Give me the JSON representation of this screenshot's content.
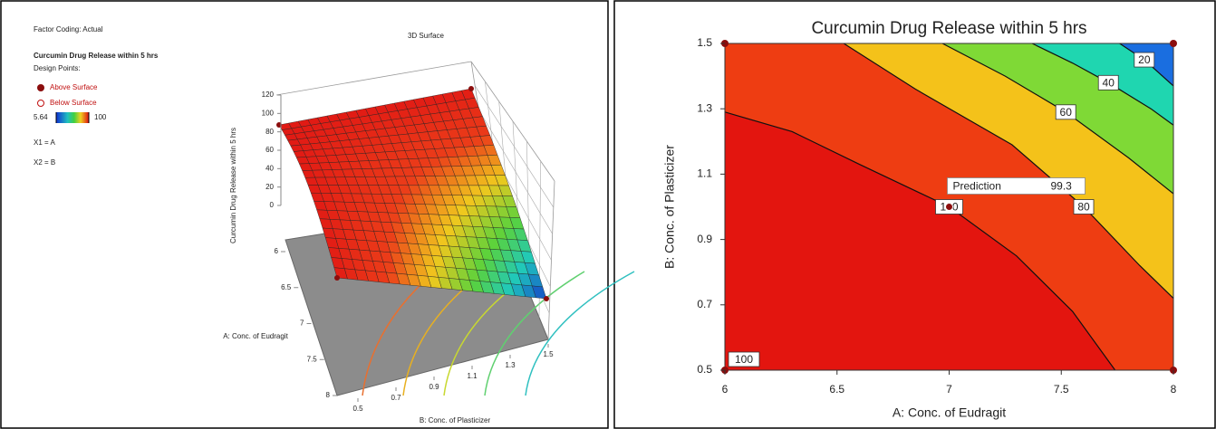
{
  "chart_data": [
    {
      "type": "surface",
      "title": "3D Surface",
      "factor_coding": "Factor Coding: Actual",
      "response": "Curcumin Drug Release within 5 hrs",
      "design_points_title": "Design Points:",
      "legend": [
        "Above Surface",
        "Below Surface"
      ],
      "colorbar_range": [
        5.64,
        100
      ],
      "factors": [
        "X1 = A",
        "X2 = B"
      ],
      "zlabel": "Curcumin Drug Release within 5 hrs",
      "zlim": [
        0,
        120
      ],
      "zticks": [
        0,
        20,
        40,
        60,
        80,
        100,
        120
      ],
      "xlabel": "A: Conc. of Eudragit",
      "xlim": [
        6,
        8
      ],
      "xticks": [
        6,
        6.5,
        7,
        7.5,
        8
      ],
      "ylabel": "B: Conc. of Plasticizer",
      "ylim": [
        0.5,
        1.5
      ],
      "yticks": [
        0.5,
        0.7,
        0.9,
        1.1,
        1.3,
        1.5
      ]
    },
    {
      "type": "contour",
      "title": "Curcumin Drug Release within 5 hrs",
      "xlabel": "A: Conc. of Eudragit",
      "ylabel": "B: Conc. of Plasticizer",
      "xlim": [
        6,
        8
      ],
      "xticks": [
        6,
        6.5,
        7,
        7.5,
        8
      ],
      "ylim": [
        0.5,
        1.5
      ],
      "yticks": [
        0.5,
        0.7,
        0.9,
        1.1,
        1.3,
        1.5
      ],
      "fill_color": "#e3150f",
      "contours": [
        {
          "level": 100,
          "color": "#ee3d12",
          "x": [
            6,
            6.3,
            6.6,
            7.0,
            7.3,
            7.55,
            7.74
          ],
          "y": [
            1.29,
            1.23,
            1.13,
            1.0,
            0.85,
            0.68,
            0.5
          ]
        },
        {
          "level": 80,
          "color": "#f4c21a",
          "x": [
            6.53,
            6.85,
            7.28,
            7.6,
            7.85,
            8
          ],
          "y": [
            1.5,
            1.36,
            1.19,
            1.0,
            0.82,
            0.72
          ]
        },
        {
          "level": 60,
          "color": "#7fd936",
          "x": [
            6.97,
            7.25,
            7.52,
            7.8,
            8
          ],
          "y": [
            1.5,
            1.4,
            1.29,
            1.15,
            1.04
          ]
        },
        {
          "level": 40,
          "color": "#1fd6b0",
          "x": [
            7.37,
            7.55,
            7.71,
            7.9,
            8
          ],
          "y": [
            1.5,
            1.44,
            1.38,
            1.3,
            1.25
          ]
        },
        {
          "level": 20,
          "color": "#1a6ee0",
          "x": [
            7.76,
            7.87,
            8
          ],
          "y": [
            1.5,
            1.45,
            1.37
          ]
        }
      ],
      "design_points": {
        "x": [
          6,
          6,
          8,
          8
        ],
        "y": [
          0.5,
          1.5,
          0.5,
          1.5
        ],
        "color": "#8b0d0d"
      },
      "annotation": {
        "text": "100",
        "x": 6,
        "y": 0.5
      },
      "prediction": {
        "label": "Prediction",
        "value": 99.3,
        "x": 7,
        "y": 1.0
      }
    }
  ]
}
